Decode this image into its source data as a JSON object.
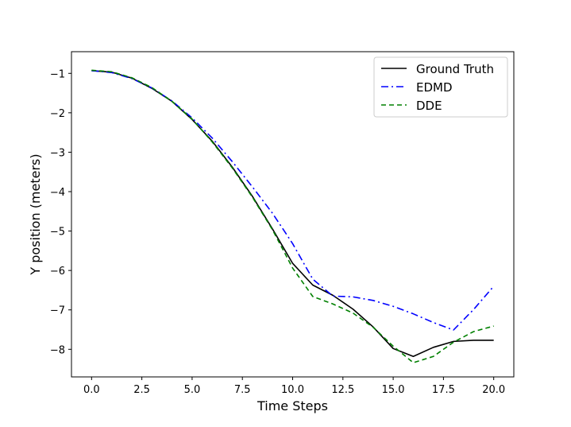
{
  "chart_data": {
    "type": "line",
    "title": "",
    "xlabel": "Time Steps",
    "ylabel": "Y position (meters)",
    "xlim": [
      -1.0,
      21.0
    ],
    "ylim": [
      -8.7,
      -0.45
    ],
    "xticks": [
      0.0,
      2.5,
      5.0,
      7.5,
      10.0,
      12.5,
      15.0,
      17.5,
      20.0
    ],
    "xtick_labels": [
      "0.0",
      "2.5",
      "5.0",
      "7.5",
      "10.0",
      "12.5",
      "15.0",
      "17.5",
      "20.0"
    ],
    "yticks": [
      -1,
      -2,
      -3,
      -4,
      -5,
      -6,
      -7,
      -8
    ],
    "ytick_labels": [
      "−1",
      "−2",
      "−3",
      "−4",
      "−5",
      "−6",
      "−7",
      "−8"
    ],
    "grid": false,
    "legend_position": "top-right",
    "x": [
      0,
      1,
      2,
      3,
      4,
      5,
      6,
      7,
      8,
      9,
      10,
      11,
      12,
      13,
      14,
      15,
      16,
      17,
      18,
      19,
      20
    ],
    "series": [
      {
        "name": "Ground Truth",
        "color": "#000000",
        "style": "solid",
        "values": [
          -0.93,
          -0.97,
          -1.12,
          -1.38,
          -1.71,
          -2.17,
          -2.72,
          -3.38,
          -4.12,
          -4.95,
          -5.82,
          -6.37,
          -6.63,
          -6.98,
          -7.43,
          -7.98,
          -8.18,
          -7.95,
          -7.8,
          -7.77,
          -7.77
        ]
      },
      {
        "name": "EDMD",
        "color": "#0000ff",
        "style": "dashdot",
        "values": [
          -0.93,
          -0.98,
          -1.13,
          -1.37,
          -1.7,
          -2.13,
          -2.64,
          -3.24,
          -3.88,
          -4.55,
          -5.32,
          -6.22,
          -6.65,
          -6.67,
          -6.76,
          -6.91,
          -7.1,
          -7.32,
          -7.51,
          -6.99,
          -6.4
        ]
      },
      {
        "name": "DDE",
        "color": "#008000",
        "style": "dashed",
        "values": [
          -0.92,
          -0.96,
          -1.11,
          -1.36,
          -1.71,
          -2.16,
          -2.74,
          -3.4,
          -4.14,
          -4.97,
          -5.94,
          -6.66,
          -6.85,
          -7.08,
          -7.44,
          -7.92,
          -8.34,
          -8.18,
          -7.82,
          -7.55,
          -7.41
        ]
      }
    ]
  }
}
